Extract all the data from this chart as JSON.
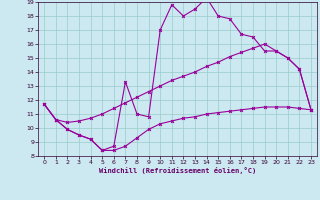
{
  "bg_color": "#cce8f0",
  "line_color": "#990099",
  "grid_color": "#99cccc",
  "xlabel": "Windchill (Refroidissement éolien,°C)",
  "xlabel_color": "#660066",
  "tick_color": "#330033",
  "xlim": [
    -0.5,
    23.5
  ],
  "ylim": [
    8,
    19
  ],
  "xticks": [
    0,
    1,
    2,
    3,
    4,
    5,
    6,
    7,
    8,
    9,
    10,
    11,
    12,
    13,
    14,
    15,
    16,
    17,
    18,
    19,
    20,
    21,
    22,
    23
  ],
  "yticks": [
    8,
    9,
    10,
    11,
    12,
    13,
    14,
    15,
    16,
    17,
    18,
    19
  ],
  "curve_bottom_x": [
    0,
    1,
    2,
    3,
    4,
    5,
    6,
    7,
    8,
    9,
    10,
    11,
    12,
    13,
    14,
    15,
    16,
    17,
    18,
    19,
    20,
    21,
    22,
    23
  ],
  "curve_bottom_y": [
    11.7,
    10.6,
    9.9,
    9.5,
    9.2,
    8.4,
    8.4,
    8.7,
    9.3,
    9.9,
    10.3,
    10.5,
    10.7,
    10.8,
    11.0,
    11.1,
    11.2,
    11.3,
    11.4,
    11.5,
    11.5,
    11.5,
    11.4,
    11.3
  ],
  "curve_mid_x": [
    0,
    1,
    2,
    3,
    4,
    5,
    6,
    7,
    8,
    9,
    10,
    11,
    12,
    13,
    14,
    15,
    16,
    17,
    18,
    19,
    20,
    21,
    22,
    23
  ],
  "curve_mid_y": [
    11.7,
    10.6,
    10.4,
    10.5,
    10.7,
    11.0,
    11.4,
    11.8,
    12.2,
    12.6,
    13.0,
    13.4,
    13.7,
    14.0,
    14.4,
    14.7,
    15.1,
    15.4,
    15.7,
    16.0,
    15.5,
    15.0,
    14.2,
    11.3
  ],
  "curve_top_x": [
    0,
    1,
    2,
    3,
    4,
    5,
    6,
    7,
    8,
    9,
    10,
    11,
    12,
    13,
    14,
    15,
    16,
    17,
    18,
    19,
    20,
    21,
    22,
    23
  ],
  "curve_top_y": [
    11.7,
    10.6,
    9.9,
    9.5,
    9.2,
    8.4,
    8.7,
    13.3,
    11.0,
    10.8,
    17.0,
    18.8,
    18.0,
    18.5,
    19.3,
    18.0,
    17.8,
    16.7,
    16.5,
    15.5,
    15.5,
    15.0,
    14.2,
    11.3
  ]
}
